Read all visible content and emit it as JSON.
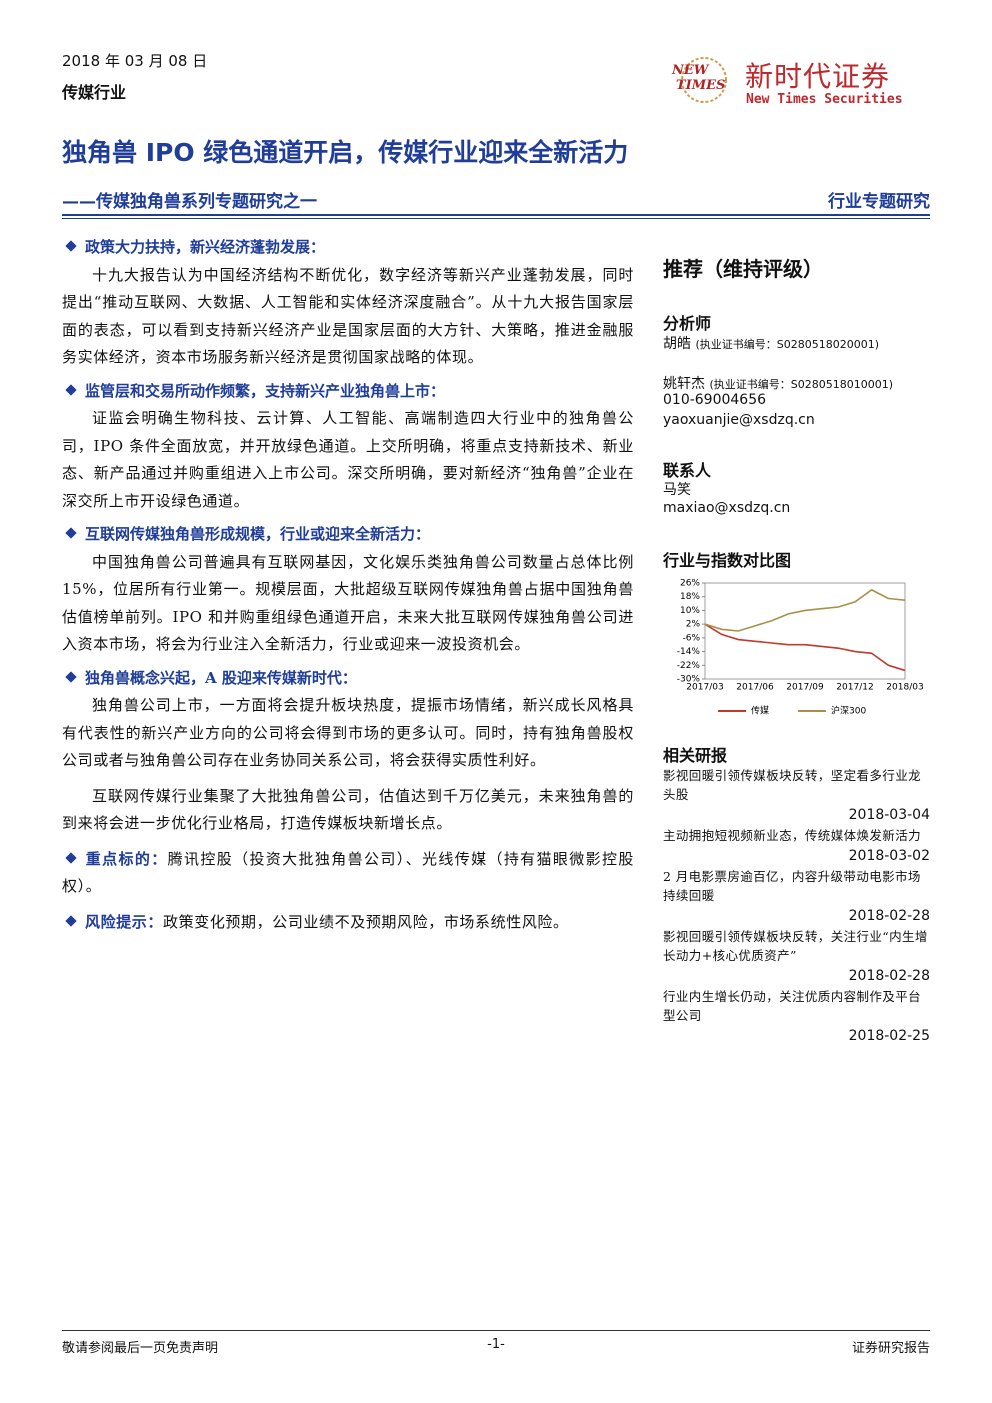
{
  "header": {
    "date": "2018 年 03 月 08 日",
    "industry": "传媒行业",
    "logo_mark": [
      "NEW",
      "TIMES"
    ],
    "logo_cn": "新时代证券",
    "logo_en": "New Times Securities"
  },
  "title": "独角兽 IPO 绿色通道开启，传媒行业迎来全新活力",
  "subtitle": "——传媒独角兽系列专题研究之一",
  "report_type": "行业专题研究",
  "sections": [
    {
      "heading": "政策大力扶持，新兴经济蓬勃发展：",
      "paragraphs": [
        "十九大报告认为中国经济结构不断优化，数字经济等新兴产业蓬勃发展，同时提出“推动互联网、大数据、人工智能和实体经济深度融合”。从十九大报告国家层面的表态，可以看到支持新兴经济产业是国家层面的大方针、大策略，推进金融服务实体经济，资本市场服务新兴经济是贯彻国家战略的体现。"
      ]
    },
    {
      "heading": "监管层和交易所动作频繁，支持新兴产业独角兽上市：",
      "paragraphs": [
        "证监会明确生物科技、云计算、人工智能、高端制造四大行业中的独角兽公司，IPO 条件全面放宽，并开放绿色通道。上交所明确，将重点支持新技术、新业态、新产品通过并购重组进入上市公司。深交所明确，要对新经济“独角兽”企业在深交所上市开设绿色通道。"
      ]
    },
    {
      "heading": "互联网传媒独角兽形成规模，行业或迎来全新活力：",
      "paragraphs": [
        "中国独角兽公司普遍具有互联网基因，文化娱乐类独角兽公司数量占总体比例 15%，位居所有行业第一。规模层面，大批超级互联网传媒独角兽占据中国独角兽估值榜单前列。IPO 和并购重组绿色通道开启，未来大批互联网传媒独角兽公司进入资本市场，将会为行业注入全新活力，行业或迎来一波投资机会。"
      ]
    },
    {
      "heading": "独角兽概念兴起，A 股迎来传媒新时代：",
      "paragraphs": [
        "独角兽公司上市，一方面将会提升板块热度，提振市场情绪，新兴成长风格具有代表性的新兴产业方向的公司将会得到市场的更多认可。同时，持有独角兽股权公司或者与独角兽公司存在业务协同关系公司，将会获得实质性利好。",
        "互联网传媒行业集聚了大批独角兽公司，估值达到千万亿美元，未来独角兽的到来将会进一步优化行业格局，打造传媒板块新增长点。"
      ]
    }
  ],
  "inline_sections": [
    {
      "heading": "重点标的：",
      "text": "腾讯控股（投资大批独角兽公司）、光线传媒（持有猫眼微影控股权）。"
    },
    {
      "heading": "风险提示：",
      "text": "政策变化预期，公司业绩不及预期风险，市场系统性风险。"
    }
  ],
  "rating": "推荐（维持评级）",
  "analysts_heading": "分析师",
  "analysts": [
    {
      "name": "胡皓",
      "cert": "(执业证书编号：S0280518020001)"
    },
    {
      "name": "姚轩杰",
      "cert": "(执业证书编号：S0280518010001)",
      "phone": "010-69004656",
      "email": "yaoxuanjie@xsdzq.cn"
    }
  ],
  "contact_heading": "联系人",
  "contact": {
    "name": "马笑",
    "email": "maxiao@xsdzq.cn"
  },
  "chart_title": "行业与指数对比图",
  "chart_data": {
    "type": "line",
    "categories": [
      "2017/03",
      null,
      null,
      "2017/06",
      null,
      null,
      "2017/09",
      null,
      null,
      "2017/12",
      null,
      null,
      "2018/03"
    ],
    "series": [
      {
        "name": "传媒",
        "color": "#c0392b",
        "values": [
          2,
          -4,
          -7,
          -8,
          -9,
          -10,
          -10,
          -11,
          -12,
          -14,
          -15,
          -22,
          -25
        ]
      },
      {
        "name": "沪深300",
        "color": "#a8904a",
        "values": [
          2,
          -1,
          -2,
          1,
          4,
          8,
          10,
          11,
          12,
          15,
          22,
          17,
          16
        ]
      }
    ],
    "ylim": [
      -30,
      26
    ],
    "yticks": [
      {
        "value": 26,
        "label": "26%"
      },
      {
        "value": 18,
        "label": "18%"
      },
      {
        "value": 10,
        "label": "10%"
      },
      {
        "value": 2,
        "label": "2%"
      },
      {
        "value": -6,
        "label": "-6%"
      },
      {
        "value": -14,
        "label": "-14%"
      },
      {
        "value": -22,
        "label": "-22%"
      },
      {
        "value": -30,
        "label": "-30%"
      }
    ],
    "legend": "bottom"
  },
  "related_heading": "相关研报",
  "related_reports": [
    {
      "title": "影视回暖引领传媒板块反转，坚定看多行业龙头股",
      "date": "2018-03-04"
    },
    {
      "title": "主动拥抱短视频新业态，传统媒体焕发新活力",
      "date": "2018-03-02"
    },
    {
      "title": "2 月电影票房逾百亿，内容升级带动电影市场持续回暖",
      "date": "2018-02-28"
    },
    {
      "title": "影视回暖引领传媒板块反转，关注行业“内生增长动力+核心优质资产”",
      "date": "2018-02-28"
    },
    {
      "title": "行业内生增长仍动，关注优质内容制作及平台型公司",
      "date": "2018-02-25"
    }
  ],
  "footer": {
    "left": "敬请参阅最后一页免责声明",
    "center": "-1-",
    "right": "证券研究报告"
  }
}
